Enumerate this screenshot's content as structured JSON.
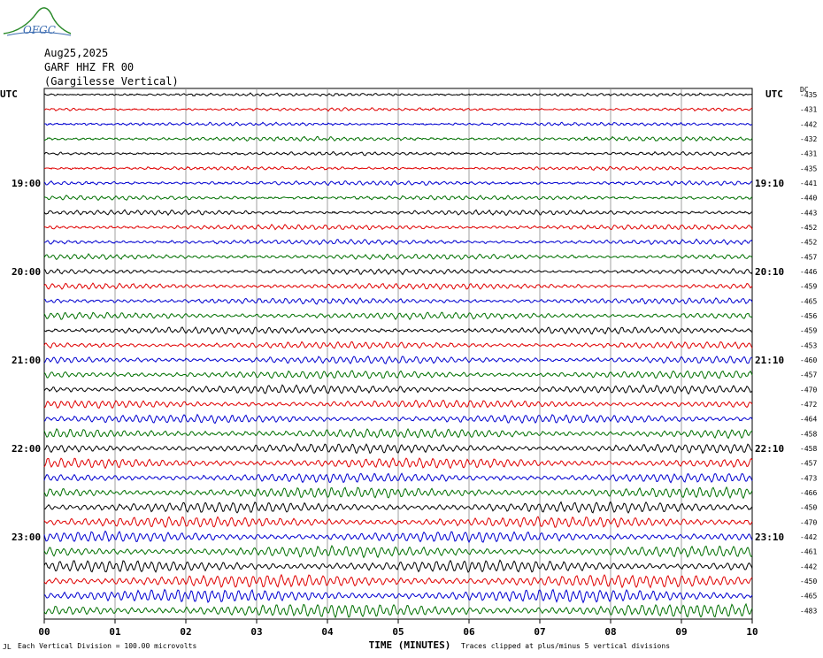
{
  "logo": {
    "text": "OFGC"
  },
  "header": {
    "date": "Aug25,2025",
    "station": "GARF HHZ FR 00",
    "location": "(Gargilesse Vertical)"
  },
  "chart_data": {
    "type": "line",
    "subtype": "helicorder",
    "title": "",
    "xlabel": "TIME (MINUTES)",
    "ylabel": "",
    "x_ticks": [
      "00",
      "01",
      "02",
      "03",
      "04",
      "05",
      "06",
      "07",
      "08",
      "09",
      "10"
    ],
    "xlim": [
      0,
      10
    ],
    "left_axis_title": "UTC",
    "right_axis_title": "UTC",
    "dc_header": "DC",
    "left_time_labels": [
      "19:00",
      "20:00",
      "21:00",
      "22:00",
      "23:00"
    ],
    "right_time_labels": [
      "19:10",
      "20:10",
      "21:10",
      "22:10",
      "23:10"
    ],
    "trace_colors": [
      "#000000",
      "#e00000",
      "#0000d0",
      "#007000"
    ],
    "grid": true,
    "dc_offsets": [
      -435,
      -431,
      -442,
      -432,
      -431,
      -435,
      -441,
      -440,
      -443,
      -452,
      -452,
      -457,
      -446,
      -459,
      -465,
      -456,
      -459,
      -453,
      -460,
      -457,
      -470,
      -472,
      -464,
      -458,
      -458,
      -457,
      -473,
      -466,
      -450,
      -470,
      -442,
      -461,
      -442,
      -450,
      -465,
      -483
    ],
    "relative_amplitude": [
      1.0,
      1.0,
      1.1,
      1.5,
      1.2,
      1.2,
      1.6,
      1.6,
      1.8,
      1.9,
      1.8,
      2.0,
      2.0,
      2.2,
      2.2,
      2.6,
      2.5,
      2.5,
      2.8,
      3.0,
      3.2,
      3.0,
      3.2,
      3.5,
      3.5,
      3.8,
      3.5,
      4.0,
      4.0,
      4.0,
      4.0,
      4.2,
      4.5,
      4.8,
      4.8,
      5.0
    ],
    "footer_left": "Each Vertical Division =  100.00 microvolts",
    "footer_right": "Traces clipped at plus/minus 5 vertical divisions",
    "corner_mark": "JL"
  }
}
